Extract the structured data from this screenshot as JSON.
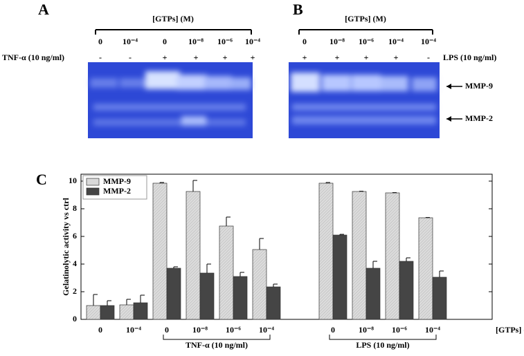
{
  "panels": {
    "A": {
      "label": "A",
      "header": "[GTPs] (M)",
      "concentrations": [
        "0",
        "10⁻⁴",
        "0",
        "10⁻⁸",
        "10⁻⁶",
        "10⁻⁴"
      ],
      "treatment": "TNF-α (10 ng/ml)",
      "signs": [
        "-",
        "-",
        "+",
        "+",
        "+",
        "+"
      ]
    },
    "B": {
      "label": "B",
      "header": "[GTPs] (M)",
      "concentrations": [
        "0",
        "10⁻⁸",
        "10⁻⁶",
        "10⁻⁴",
        "10⁻⁴"
      ],
      "treatment": "LPS (10 ng/ml)",
      "signs": [
        "+",
        "+",
        "+",
        "+",
        "-"
      ]
    },
    "band_labels": [
      "MMP-9",
      "MMP-2"
    ]
  },
  "chart_data": {
    "type": "bar",
    "panel_label": "C",
    "ylabel": "Gelatinolytic activity vs ctrl",
    "xlabel": "[GTPs] (M)",
    "categories": [
      "0",
      "10⁻⁴",
      "0",
      "10⁻⁸",
      "10⁻⁶",
      "10⁻⁴",
      null,
      "0",
      "10⁻⁸",
      "10⁻⁶",
      "10⁻⁴"
    ],
    "groups": [
      {
        "label": "TNF-α (10 ng/ml)",
        "first": 2,
        "last": 5
      },
      {
        "label": "LPS (10 ng/ml)",
        "first": 7,
        "last": 10
      }
    ],
    "series": [
      {
        "name": "MMP-9",
        "color": "#d9d9d9",
        "values": [
          1.0,
          1.05,
          9.85,
          9.25,
          6.75,
          5.05,
          null,
          9.85,
          9.25,
          9.15,
          7.35
        ],
        "errors": [
          0.8,
          0.4,
          0.05,
          0.8,
          0.65,
          0.8,
          null,
          0.05,
          0.02,
          0.02,
          0.02
        ]
      },
      {
        "name": "MMP-2",
        "color": "#454545",
        "values": [
          1.0,
          1.2,
          3.7,
          3.35,
          3.1,
          2.35,
          null,
          6.1,
          3.7,
          4.2,
          3.05
        ],
        "errors": [
          0.35,
          0.55,
          0.1,
          0.65,
          0.3,
          0.2,
          null,
          0.05,
          0.5,
          0.25,
          0.45
        ]
      }
    ],
    "ylim": [
      0,
      10.5
    ],
    "yticks": [
      0,
      2,
      4,
      6,
      8,
      10
    ],
    "legend": "top-left"
  }
}
